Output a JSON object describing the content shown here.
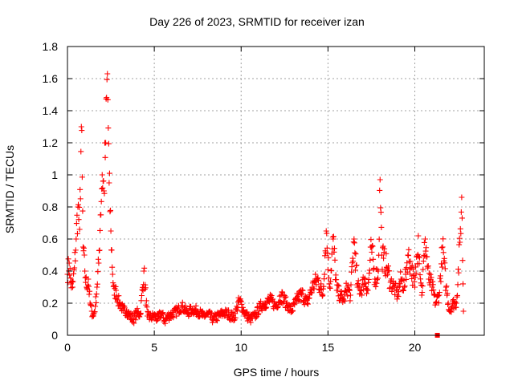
{
  "chart_data": {
    "type": "scatter",
    "title": "Day 226 of 2023, SRMTID for receiver izan",
    "xlabel": "GPS time / hours",
    "ylabel": "SRMTID / TECUs",
    "xlim": [
      0,
      24
    ],
    "ylim": [
      0,
      1.8
    ],
    "xticks": [
      0,
      5,
      10,
      15,
      20
    ],
    "yticks": [
      0,
      0.2,
      0.4,
      0.6,
      0.8,
      1,
      1.2,
      1.4,
      1.6,
      1.8
    ],
    "xtick_labels": [
      "0",
      "5",
      "10",
      "15",
      "20"
    ],
    "ytick_labels": [
      "0",
      "0.2",
      "0.4",
      "0.6",
      "0.8",
      "1",
      "1.2",
      "1.4",
      "1.6",
      "1.8"
    ],
    "grid": true,
    "marker": "+",
    "color": "#ff0000",
    "square_marker": {
      "x": 21.3,
      "y": 0.0
    },
    "series": [
      {
        "name": "SRMTID",
        "x": [
          0.0,
          0.1,
          0.2,
          0.3,
          0.4,
          0.5,
          0.6,
          0.7,
          0.8,
          0.9,
          1.0,
          1.1,
          1.2,
          1.3,
          1.4,
          1.5,
          1.6,
          1.7,
          1.8,
          1.9,
          2.0,
          2.1,
          2.2,
          2.3,
          2.4,
          2.5,
          2.6,
          2.7,
          2.8,
          2.9,
          3.0,
          3.2,
          3.4,
          3.6,
          3.8,
          4.0,
          4.2,
          4.4,
          4.6,
          4.8,
          5.0,
          5.2,
          5.4,
          5.6,
          5.8,
          6.0,
          6.3,
          6.6,
          6.9,
          7.2,
          7.5,
          7.8,
          8.1,
          8.4,
          8.7,
          9.0,
          9.3,
          9.6,
          9.9,
          10.2,
          10.5,
          10.8,
          11.1,
          11.4,
          11.7,
          12.0,
          12.3,
          12.6,
          12.9,
          13.2,
          13.5,
          13.8,
          14.1,
          14.4,
          14.7,
          14.9,
          15.1,
          15.3,
          15.5,
          15.7,
          15.9,
          16.1,
          16.3,
          16.5,
          16.7,
          16.9,
          17.1,
          17.3,
          17.5,
          17.7,
          17.9,
          18.0,
          18.1,
          18.2,
          18.4,
          18.6,
          18.8,
          19.0,
          19.2,
          19.4,
          19.6,
          19.8,
          20.0,
          20.2,
          20.4,
          20.6,
          20.8,
          21.0,
          21.2,
          21.4,
          21.6,
          21.8,
          22.0,
          22.2,
          22.4,
          22.6,
          22.7,
          22.8
        ],
        "y": [
          0.38,
          0.45,
          0.32,
          0.3,
          0.42,
          0.6,
          0.8,
          0.66,
          1.3,
          0.55,
          0.4,
          0.3,
          0.35,
          0.2,
          0.15,
          0.12,
          0.18,
          0.3,
          0.45,
          0.75,
          1.0,
          0.9,
          1.2,
          1.63,
          0.95,
          0.65,
          0.38,
          0.25,
          0.28,
          0.22,
          0.2,
          0.16,
          0.15,
          0.12,
          0.1,
          0.14,
          0.13,
          0.4,
          0.12,
          0.11,
          0.12,
          0.1,
          0.14,
          0.09,
          0.12,
          0.13,
          0.15,
          0.18,
          0.14,
          0.16,
          0.15,
          0.12,
          0.13,
          0.1,
          0.12,
          0.14,
          0.13,
          0.11,
          0.22,
          0.14,
          0.1,
          0.12,
          0.18,
          0.2,
          0.22,
          0.18,
          0.25,
          0.2,
          0.15,
          0.22,
          0.26,
          0.2,
          0.3,
          0.35,
          0.25,
          0.65,
          0.3,
          0.6,
          0.28,
          0.25,
          0.22,
          0.3,
          0.25,
          0.6,
          0.3,
          0.28,
          0.35,
          0.28,
          0.55,
          0.35,
          0.4,
          0.97,
          0.5,
          0.48,
          0.42,
          0.33,
          0.3,
          0.25,
          0.35,
          0.3,
          0.5,
          0.42,
          0.3,
          0.62,
          0.25,
          0.6,
          0.35,
          0.3,
          0.2,
          0.25,
          0.55,
          0.3,
          0.15,
          0.2,
          0.2,
          0.58,
          0.86,
          0.15
        ]
      }
    ]
  }
}
